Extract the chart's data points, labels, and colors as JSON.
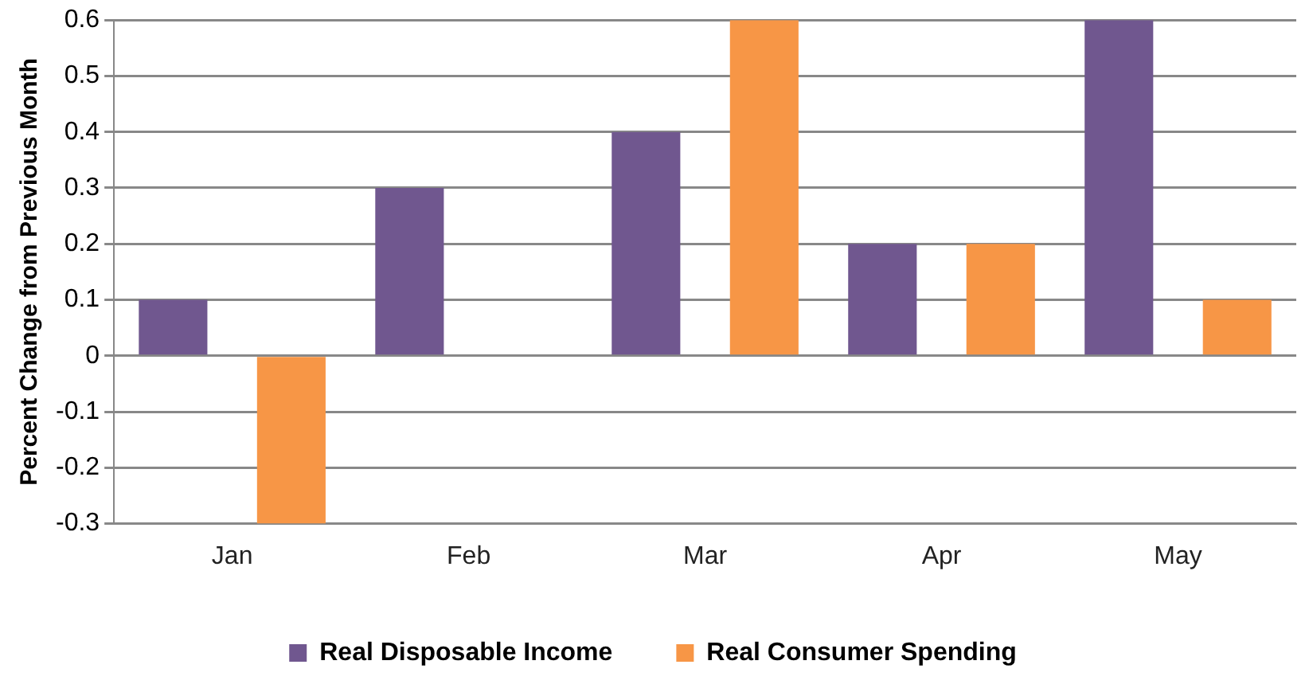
{
  "chart_data": {
    "type": "bar",
    "ylabel": "Percent Change from Previous Month",
    "categories": [
      "Jan",
      "Feb",
      "Mar",
      "Apr",
      "May"
    ],
    "series": [
      {
        "name": "Real Disposable Income",
        "color": "#70578f",
        "values": [
          0.1,
          0.3,
          0.4,
          0.2,
          0.6
        ]
      },
      {
        "name": "Real Consumer Spending",
        "color": "#f79646",
        "values": [
          -0.3,
          0,
          0.6,
          0.2,
          0.1
        ]
      }
    ],
    "ylim": [
      -0.3,
      0.6
    ],
    "yticks": [
      -0.3,
      -0.2,
      -0.1,
      0,
      0.1,
      0.2,
      0.3,
      0.4,
      0.5,
      0.6
    ],
    "grid": "y",
    "legend": "bottom"
  }
}
